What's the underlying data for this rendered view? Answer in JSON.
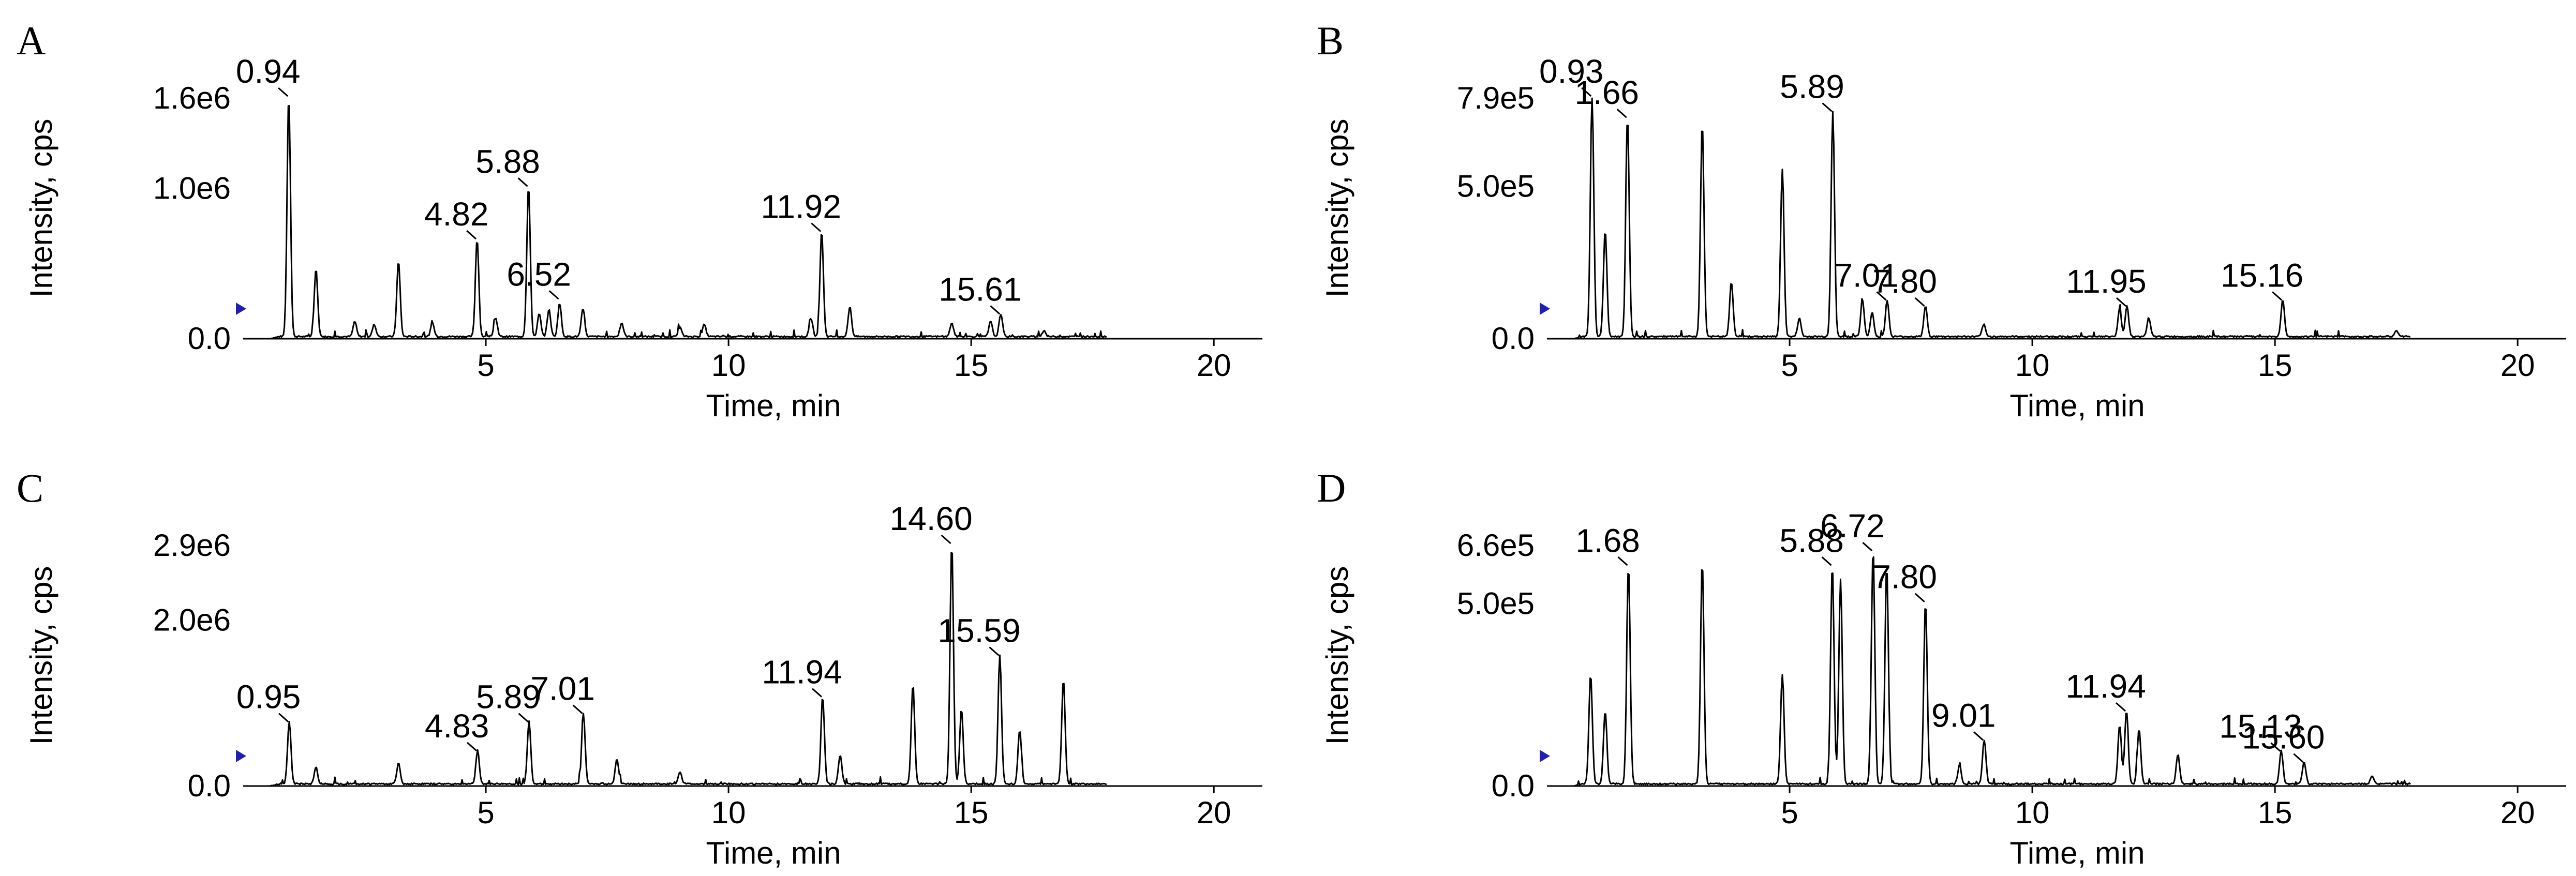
{
  "chart_data": [
    {
      "panel": "A",
      "type": "line",
      "xlabel": "Time, min",
      "ylabel": "Intensity, cps",
      "xlim": [
        0,
        21
      ],
      "ylim": [
        0,
        1600000
      ],
      "xticks": [
        "5",
        "10",
        "15",
        "20"
      ],
      "yticks": [
        {
          "value": 0,
          "label": "0.0"
        },
        {
          "value": 1000000,
          "label": "1.0e6"
        },
        {
          "value": 1600000,
          "label": "1.6e6"
        }
      ],
      "peak_labels": [
        {
          "label": "0.94",
          "x": 0.94,
          "y": 1600000
        },
        {
          "label": "4.82",
          "x": 4.82,
          "y": 650000
        },
        {
          "label": "5.88",
          "x": 5.88,
          "y": 1000000
        },
        {
          "label": "6.52",
          "x": 6.52,
          "y": 250000
        },
        {
          "label": "11.92",
          "x": 11.92,
          "y": 700000
        },
        {
          "label": "15.61",
          "x": 15.61,
          "y": 150000
        }
      ],
      "series": [
        {
          "x": [
            0.94,
            1.5,
            2.3,
            2.7,
            3.2,
            3.9,
            4.82,
            5.2,
            5.88,
            6.1,
            6.3,
            6.52,
            7.0,
            7.8,
            9.0,
            9.5,
            11.7,
            11.92,
            12.5,
            14.6,
            15.4,
            15.61,
            16.5
          ],
          "y": [
            1600000,
            450000,
            100000,
            80000,
            500000,
            90000,
            650000,
            120000,
            1000000,
            150000,
            180000,
            220000,
            180000,
            90000,
            60000,
            80000,
            120000,
            700000,
            200000,
            90000,
            100000,
            150000,
            40000
          ]
        }
      ]
    },
    {
      "panel": "B",
      "type": "line",
      "xlabel": "Time, min",
      "ylabel": "Intensity, cps",
      "xlim": [
        0,
        21
      ],
      "ylim": [
        0,
        790000
      ],
      "xticks": [
        "5",
        "10",
        "15",
        "20"
      ],
      "yticks": [
        {
          "value": 0,
          "label": "0.0"
        },
        {
          "value": 500000,
          "label": "5.0e5"
        },
        {
          "value": 790000,
          "label": "7.9e5"
        }
      ],
      "peak_labels": [
        {
          "label": "0.93",
          "x": 0.93,
          "y": 790000
        },
        {
          "label": "1.66",
          "x": 1.66,
          "y": 720000
        },
        {
          "label": "5.89",
          "x": 5.89,
          "y": 740000
        },
        {
          "label": "7.01",
          "x": 7.01,
          "y": 120000
        },
        {
          "label": "7.80",
          "x": 7.8,
          "y": 100000
        },
        {
          "label": "11.95",
          "x": 11.95,
          "y": 100000
        },
        {
          "label": "15.16",
          "x": 15.16,
          "y": 120000
        }
      ],
      "series": [
        {
          "x": [
            0.93,
            1.2,
            1.66,
            3.2,
            3.8,
            4.85,
            5.2,
            5.89,
            6.5,
            6.7,
            7.01,
            7.8,
            9.0,
            11.8,
            11.95,
            12.4,
            15.16,
            17.5
          ],
          "y": [
            790000,
            350000,
            720000,
            700000,
            180000,
            550000,
            60000,
            740000,
            120000,
            80000,
            120000,
            100000,
            40000,
            90000,
            100000,
            60000,
            120000,
            20000
          ]
        }
      ]
    },
    {
      "panel": "C",
      "type": "line",
      "xlabel": "Time, min",
      "ylabel": "Intensity, cps",
      "xlim": [
        0,
        21
      ],
      "ylim": [
        0,
        2900000
      ],
      "xticks": [
        "5",
        "10",
        "15",
        "20"
      ],
      "yticks": [
        {
          "value": 0,
          "label": "0.0"
        },
        {
          "value": 2000000,
          "label": "2.0e6"
        },
        {
          "value": 2900000,
          "label": "2.9e6"
        }
      ],
      "peak_labels": [
        {
          "label": "0.95",
          "x": 0.95,
          "y": 750000
        },
        {
          "label": "4.83",
          "x": 4.83,
          "y": 400000
        },
        {
          "label": "5.89",
          "x": 5.89,
          "y": 750000
        },
        {
          "label": "7.01",
          "x": 7.01,
          "y": 850000
        },
        {
          "label": "11.94",
          "x": 11.94,
          "y": 1050000
        },
        {
          "label": "14.60",
          "x": 14.6,
          "y": 2900000
        },
        {
          "label": "15.59",
          "x": 15.59,
          "y": 1550000
        }
      ],
      "series": [
        {
          "x": [
            0.95,
            1.5,
            3.2,
            4.83,
            5.89,
            7.01,
            7.7,
            9.0,
            11.94,
            12.3,
            13.8,
            14.6,
            14.8,
            15.59,
            16.0,
            16.9
          ],
          "y": [
            750000,
            200000,
            250000,
            400000,
            750000,
            850000,
            300000,
            150000,
            1050000,
            350000,
            1200000,
            2900000,
            900000,
            1550000,
            650000,
            1250000
          ]
        }
      ]
    },
    {
      "panel": "D",
      "type": "line",
      "xlabel": "Time, min",
      "ylabel": "Intensity, cps",
      "xlim": [
        0,
        21
      ],
      "ylim": [
        0,
        660000
      ],
      "xticks": [
        "5",
        "10",
        "15",
        "20"
      ],
      "yticks": [
        {
          "value": 0,
          "label": "0.0"
        },
        {
          "value": 500000,
          "label": "5.0e5"
        },
        {
          "value": 660000,
          "label": "6.6e5"
        }
      ],
      "peak_labels": [
        {
          "label": "1.68",
          "x": 1.68,
          "y": 600000
        },
        {
          "label": "5.88",
          "x": 5.88,
          "y": 600000
        },
        {
          "label": "6.72",
          "x": 6.72,
          "y": 640000
        },
        {
          "label": "7.80",
          "x": 7.8,
          "y": 500000
        },
        {
          "label": "9.01",
          "x": 9.01,
          "y": 120000
        },
        {
          "label": "11.94",
          "x": 11.94,
          "y": 200000
        },
        {
          "label": "15.13",
          "x": 15.13,
          "y": 90000
        },
        {
          "label": "15.60",
          "x": 15.6,
          "y": 60000
        }
      ],
      "series": [
        {
          "x": [
            0.9,
            1.2,
            1.68,
            3.2,
            4.85,
            5.88,
            6.05,
            6.72,
            7.0,
            7.8,
            8.5,
            9.01,
            11.8,
            11.94,
            12.2,
            13.0,
            15.13,
            15.6,
            17.0
          ],
          "y": [
            300000,
            200000,
            600000,
            610000,
            300000,
            600000,
            560000,
            640000,
            600000,
            500000,
            50000,
            120000,
            160000,
            200000,
            150000,
            80000,
            90000,
            60000,
            20000
          ]
        }
      ]
    }
  ]
}
